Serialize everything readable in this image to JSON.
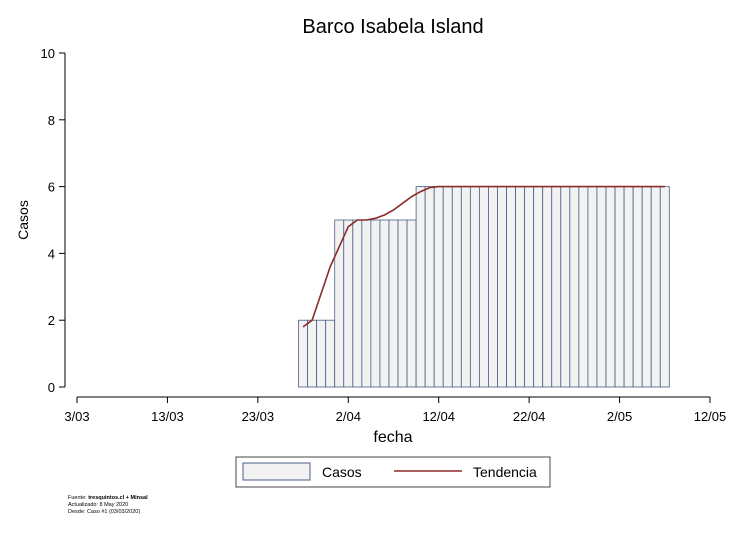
{
  "chart_data": {
    "type": "bar",
    "title": "Barco Isabela Island",
    "xlabel": "fecha",
    "ylabel": "Casos",
    "ylim": [
      0,
      10
    ],
    "yticks": [
      0,
      2,
      4,
      6,
      8,
      10
    ],
    "x_range_days": [
      "2020-03-03",
      "2020-05-12"
    ],
    "xticks": [
      {
        "date": "2020-03-03",
        "label": "3/03"
      },
      {
        "date": "2020-03-13",
        "label": "13/03"
      },
      {
        "date": "2020-03-23",
        "label": "23/03"
      },
      {
        "date": "2020-04-02",
        "label": "2/04"
      },
      {
        "date": "2020-04-12",
        "label": "12/04"
      },
      {
        "date": "2020-04-22",
        "label": "22/04"
      },
      {
        "date": "2020-05-02",
        "label": "2/05"
      },
      {
        "date": "2020-05-12",
        "label": "12/05"
      }
    ],
    "bar_dates": [
      "2020-03-28",
      "2020-03-29",
      "2020-03-30",
      "2020-03-31",
      "2020-04-01",
      "2020-04-02",
      "2020-04-03",
      "2020-04-04",
      "2020-04-05",
      "2020-04-06",
      "2020-04-07",
      "2020-04-08",
      "2020-04-09",
      "2020-04-10",
      "2020-04-11",
      "2020-04-12",
      "2020-04-13",
      "2020-04-14",
      "2020-04-15",
      "2020-04-16",
      "2020-04-17",
      "2020-04-18",
      "2020-04-19",
      "2020-04-20",
      "2020-04-21",
      "2020-04-22",
      "2020-04-23",
      "2020-04-24",
      "2020-04-25",
      "2020-04-26",
      "2020-04-27",
      "2020-04-28",
      "2020-04-29",
      "2020-04-30",
      "2020-05-01",
      "2020-05-02",
      "2020-05-03",
      "2020-05-04",
      "2020-05-05",
      "2020-05-06",
      "2020-05-07"
    ],
    "series": [
      {
        "name": "Casos",
        "kind": "bar",
        "values": [
          2,
          2,
          2,
          2,
          5,
          5,
          5,
          5,
          5,
          5,
          5,
          5,
          5,
          6,
          6,
          6,
          6,
          6,
          6,
          6,
          6,
          6,
          6,
          6,
          6,
          6,
          6,
          6,
          6,
          6,
          6,
          6,
          6,
          6,
          6,
          6,
          6,
          6,
          6,
          6,
          6
        ],
        "fill": "#f2f2f2",
        "stroke": "#4a5f86"
      },
      {
        "name": "Tendencia",
        "kind": "line",
        "values": [
          1.8,
          2.0,
          2.8,
          3.6,
          4.2,
          4.8,
          5.0,
          5.0,
          5.05,
          5.15,
          5.3,
          5.5,
          5.7,
          5.85,
          5.97,
          6,
          6,
          6,
          6,
          6,
          6,
          6,
          6,
          6,
          6,
          6,
          6,
          6,
          6,
          6,
          6,
          6,
          6,
          6,
          6,
          6,
          6,
          6,
          6,
          6,
          6
        ],
        "color": "#8b2b2b"
      }
    ],
    "legend": "bottom"
  },
  "footer": {
    "source_label": "Fuente:",
    "source_value": "tresquintos.cl + Minsal",
    "updated": "Actualizado: 8 May 2020",
    "since": "Desde: Caso #1  (03/03/2020)"
  }
}
